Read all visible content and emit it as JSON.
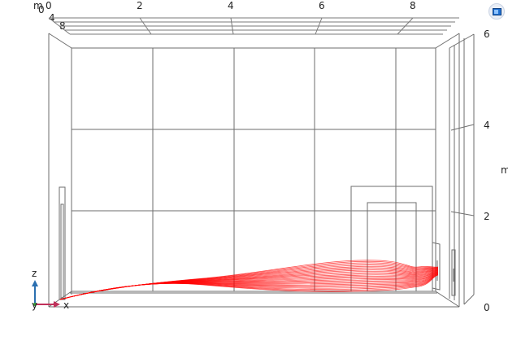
{
  "toolbar": {
    "view_cube": "view-cube-icon"
  },
  "axes": {
    "top_unit": "m",
    "top_x_ticks": [
      "0",
      "2",
      "4",
      "6",
      "8"
    ],
    "top_depth_ticks": [
      "0",
      "4",
      "8"
    ],
    "right_unit": "m",
    "right_z_ticks": [
      "6",
      "4",
      "2",
      "0"
    ]
  },
  "triad": {
    "z": "z",
    "y": "y",
    "x": "x"
  },
  "colors": {
    "streamline": "#ff0000",
    "wireframe": "#707070"
  }
}
